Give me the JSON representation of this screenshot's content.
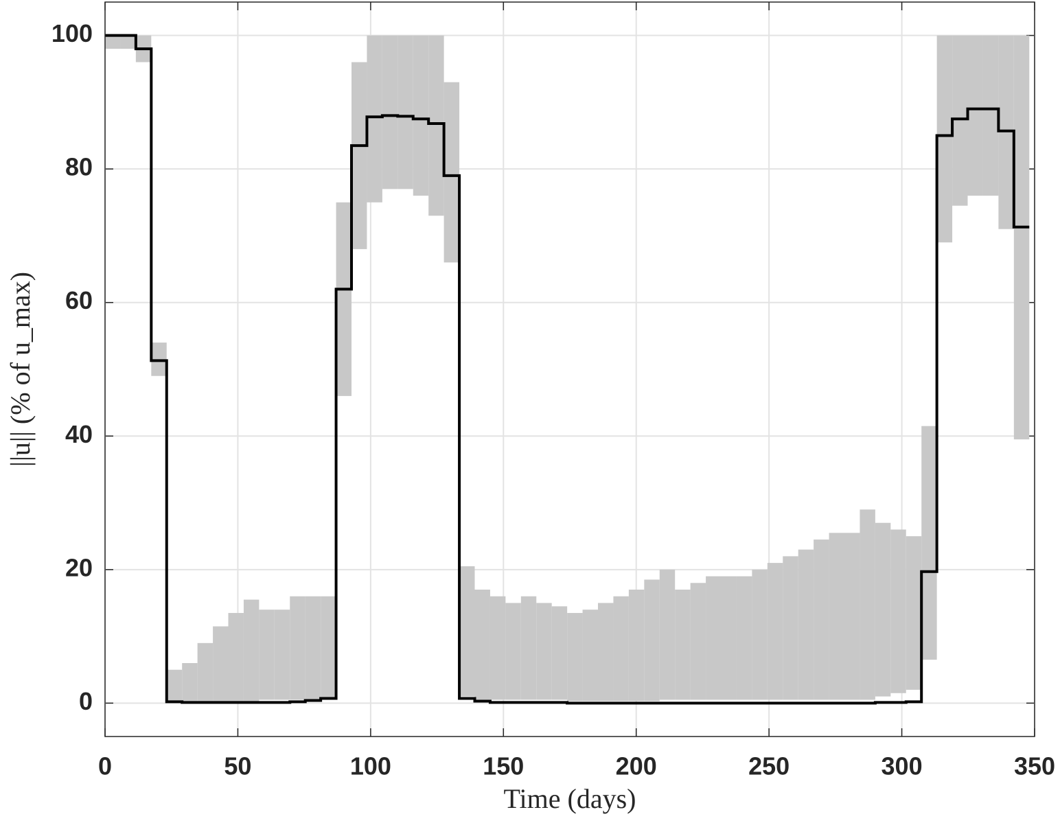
{
  "chart_data": {
    "type": "step",
    "xlabel": "Time (days)",
    "ylabel": "||u|| (% of u_max)",
    "x": [
      0,
      5.8,
      11.6,
      17.4,
      23.2,
      29,
      34.8,
      40.6,
      46.4,
      52.2,
      58,
      63.8,
      69.6,
      75.4,
      81.2,
      87,
      92.8,
      98.6,
      104.4,
      110.2,
      116,
      121.8,
      127.6,
      133.4,
      139.2,
      145,
      150.8,
      156.6,
      162.4,
      168.2,
      174,
      179.8,
      185.6,
      191.4,
      197.2,
      203,
      208.8,
      214.6,
      220.4,
      226.2,
      232,
      237.8,
      243.6,
      249.4,
      255.2,
      261,
      266.8,
      272.6,
      278.4,
      284.2,
      290,
      295.8,
      301.6,
      307.4,
      313.2,
      319,
      324.8,
      330.6,
      336.4,
      342.2
    ],
    "step_width": 5.8,
    "series": [
      {
        "color": "#c8c8c8",
        "low": [
          98,
          98,
          96,
          49,
          0,
          0,
          0,
          0,
          0,
          0,
          0.5,
          0.5,
          0.5,
          0.5,
          0.5,
          46,
          68,
          75,
          77,
          77,
          76,
          73,
          66,
          1,
          0.5,
          0.5,
          0.5,
          0.5,
          0.5,
          0.5,
          0.3,
          0.3,
          0.3,
          0.3,
          0.3,
          0.3,
          0.5,
          0.5,
          0.5,
          0.5,
          0.5,
          0.5,
          0.5,
          0.5,
          0.5,
          0.5,
          0.5,
          0.5,
          0.5,
          0.5,
          1,
          1.5,
          2,
          6.5,
          69,
          74.5,
          76,
          76,
          71,
          39.5
        ],
        "high": [
          100,
          100,
          100,
          54,
          5,
          6,
          9,
          11.5,
          13.5,
          15.5,
          14,
          14,
          16,
          16,
          16,
          75,
          96,
          100,
          100,
          100,
          100,
          100,
          93,
          20.5,
          17,
          16,
          15,
          16,
          15,
          14.5,
          13.5,
          14,
          15,
          16,
          17,
          18.5,
          20,
          17,
          18,
          19,
          19,
          19,
          20,
          21,
          22,
          23,
          24.5,
          25.5,
          25.5,
          29,
          27,
          26,
          25,
          41.5,
          100,
          100,
          100,
          100,
          100,
          100
        ]
      },
      {
        "color": "#000000",
        "values": [
          100,
          100,
          98,
          51.3,
          0.2,
          0.1,
          0.1,
          0.1,
          0.1,
          0.1,
          0.1,
          0.1,
          0.2,
          0.4,
          0.7,
          62,
          83.5,
          87.8,
          88,
          87.9,
          87.5,
          86.8,
          79,
          0.7,
          0.3,
          0.1,
          0.1,
          0.1,
          0.1,
          0.1,
          0,
          0,
          0,
          0,
          0,
          0,
          0,
          0,
          0,
          0,
          0,
          0,
          0,
          0,
          0,
          0,
          0,
          0,
          0,
          0,
          0.1,
          0.1,
          0.2,
          19.7,
          85,
          87.5,
          89,
          89,
          85.7,
          71.3
        ]
      }
    ],
    "xlim": [
      0,
      350
    ],
    "xticks": [
      0,
      50,
      100,
      150,
      200,
      250,
      300,
      350
    ],
    "ylim": [
      -5,
      105
    ],
    "yticks": [
      0,
      20,
      40,
      60,
      80,
      100
    ],
    "grid": true
  }
}
